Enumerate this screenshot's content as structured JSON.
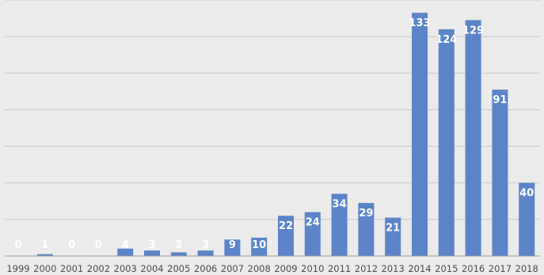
{
  "chart_data": {
    "type": "bar",
    "categories": [
      "1999",
      "2000",
      "2001",
      "2002",
      "2003",
      "2004",
      "2005",
      "2006",
      "2007",
      "2008",
      "2009",
      "2010",
      "2011",
      "2012",
      "2013",
      "2014",
      "2015",
      "2016",
      "2017",
      "2018"
    ],
    "values": [
      0,
      1,
      0,
      0,
      4,
      3,
      2,
      3,
      9,
      10,
      22,
      24,
      34,
      29,
      21,
      133,
      124,
      129,
      91,
      40
    ],
    "data_labels": [
      "0",
      "1",
      "0",
      "0",
      "4",
      "3",
      "2",
      "3",
      "9",
      "10",
      "22",
      "24",
      "34",
      "29",
      "21",
      "133",
      "124",
      "129",
      "91",
      "40"
    ],
    "title": "",
    "xlabel": "",
    "ylabel": "",
    "ylim": [
      0,
      140
    ],
    "grid": true,
    "legend": "none",
    "colors": {
      "bar": "#5b84c9",
      "grid": "#c8c8c8",
      "axis": "#9a9a9a",
      "background": "#ebebeb",
      "label": "#ffffff",
      "tick": "#4a4a4a"
    }
  }
}
